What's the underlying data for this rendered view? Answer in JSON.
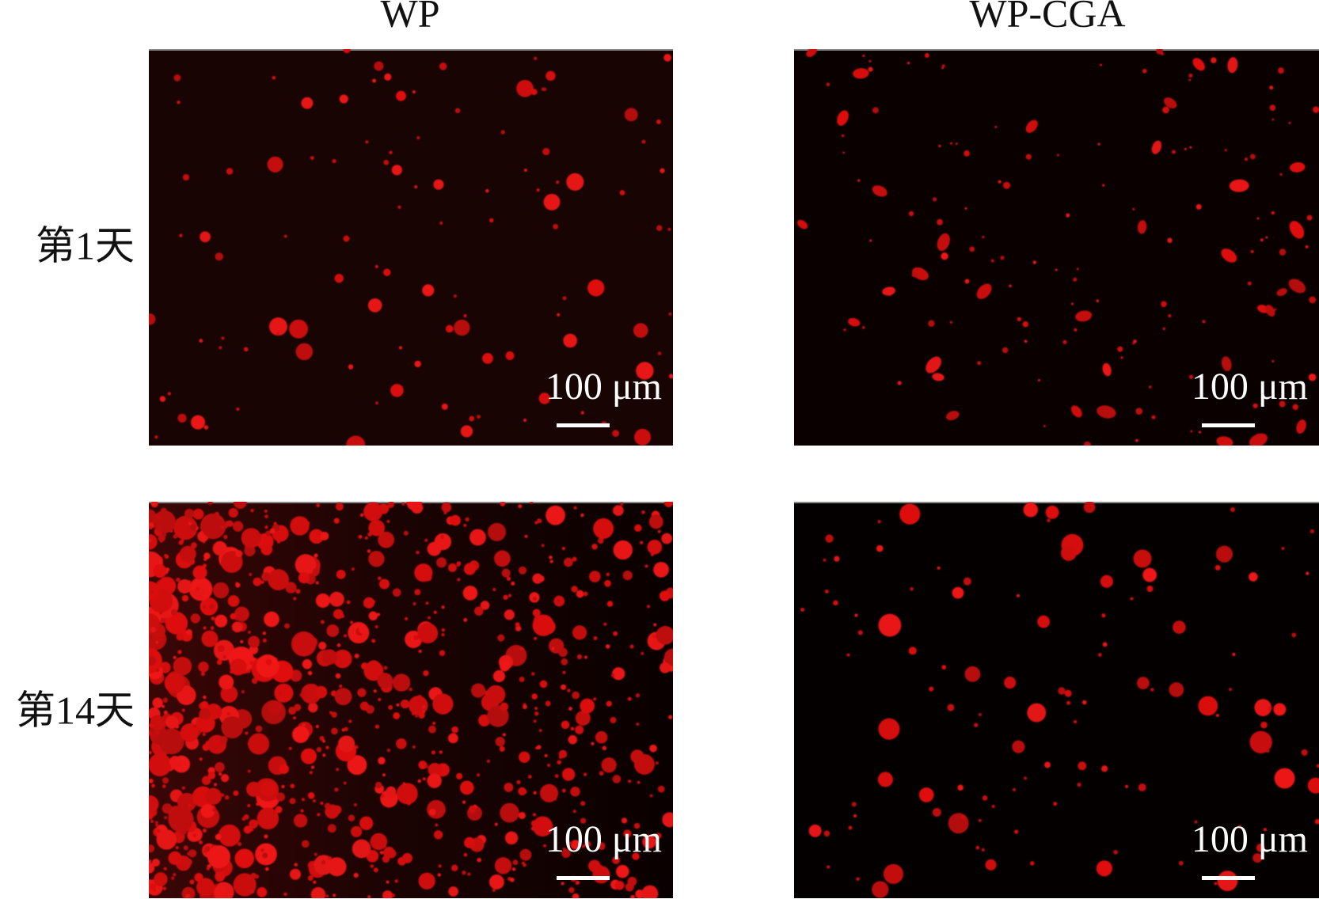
{
  "column_headers": [
    "WP",
    "WP-CGA"
  ],
  "row_labels": [
    "第1天",
    "第14天"
  ],
  "panels": [
    {
      "scale_label": "100 μm"
    },
    {
      "scale_label": "100 μm"
    },
    {
      "scale_label": "100 μm"
    },
    {
      "scale_label": "100 μm"
    }
  ]
}
